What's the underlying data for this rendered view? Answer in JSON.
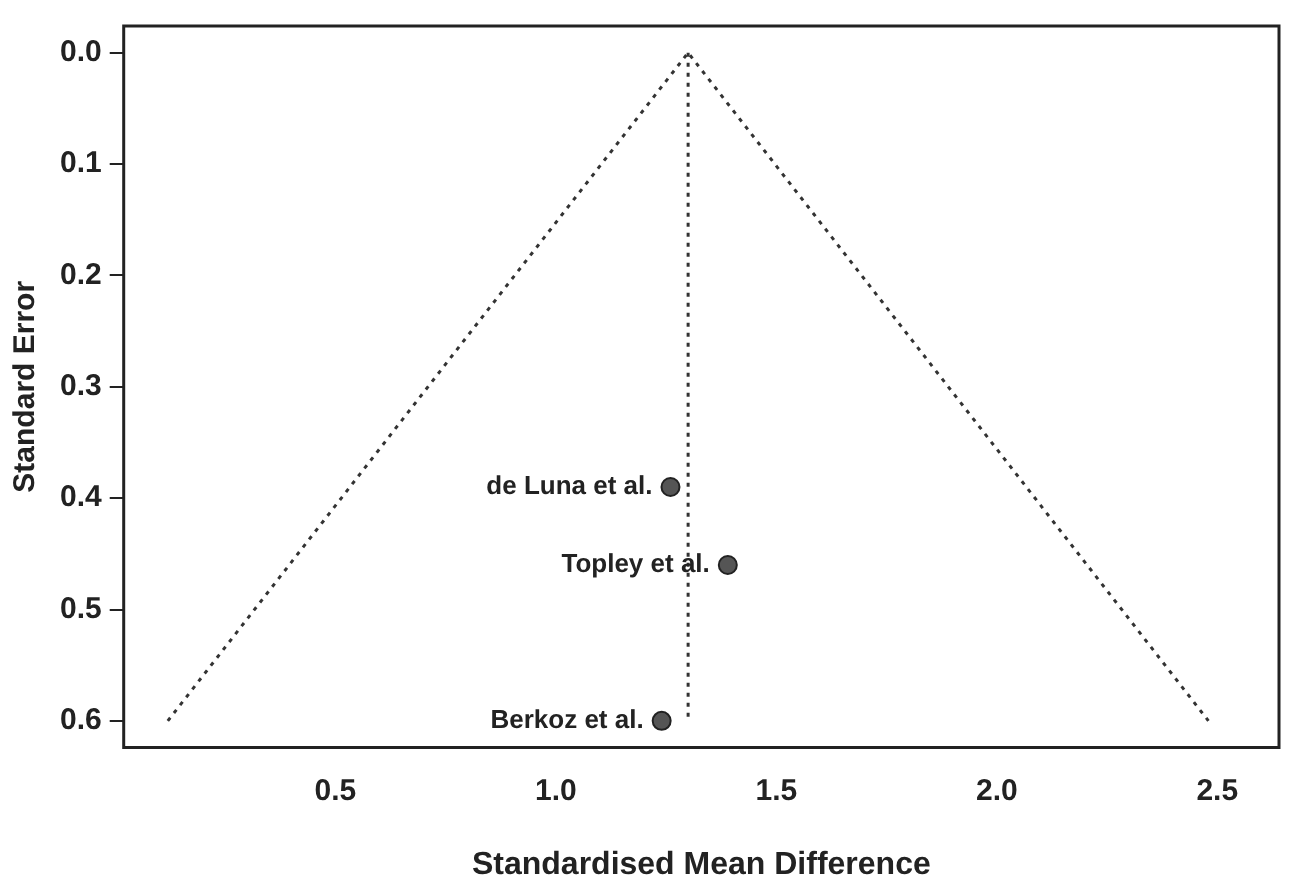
{
  "chart_data": {
    "type": "scatter",
    "xlabel": "Standardised Mean Difference",
    "ylabel": "Standard Error",
    "xlim": [
      0.02,
      2.64
    ],
    "ylim": [
      0.624,
      -0.024
    ],
    "xticks": [
      0.5,
      {
        "value": 1,
        "label": "1.0"
      },
      1.5,
      {
        "value": 2,
        "label": "2.0"
      },
      2.5
    ],
    "yticks": [
      {
        "value": 0,
        "label": "0.0"
      },
      0.1,
      0.2,
      0.3,
      0.4,
      0.5,
      0.6
    ],
    "grid": false,
    "legend": false,
    "series": [
      {
        "type": "line",
        "x": [
          0.12,
          1.3,
          2.48
        ],
        "values": [
          0.6,
          0,
          0.6
        ],
        "color": "#333333",
        "line_style": "dotted",
        "marker": "none"
      },
      {
        "type": "line",
        "x": [
          1.3,
          1.3
        ],
        "values": [
          0,
          0.6
        ],
        "color": "#333333",
        "line_style": "dotted",
        "marker": "none"
      },
      {
        "type": "scatter",
        "x": [
          1.26,
          1.39,
          1.24
        ],
        "values": [
          0.39,
          0.46,
          0.6
        ],
        "color": "#555555",
        "marker": "circle"
      }
    ],
    "annotations": [
      {
        "text": "de Luna et al.",
        "x": 1.26,
        "y": 0.39
      },
      {
        "text": "Topley et al.",
        "x": 1.39,
        "y": 0.46
      },
      {
        "text": "Berkoz et al.",
        "x": 1.24,
        "y": 0.6
      }
    ]
  }
}
